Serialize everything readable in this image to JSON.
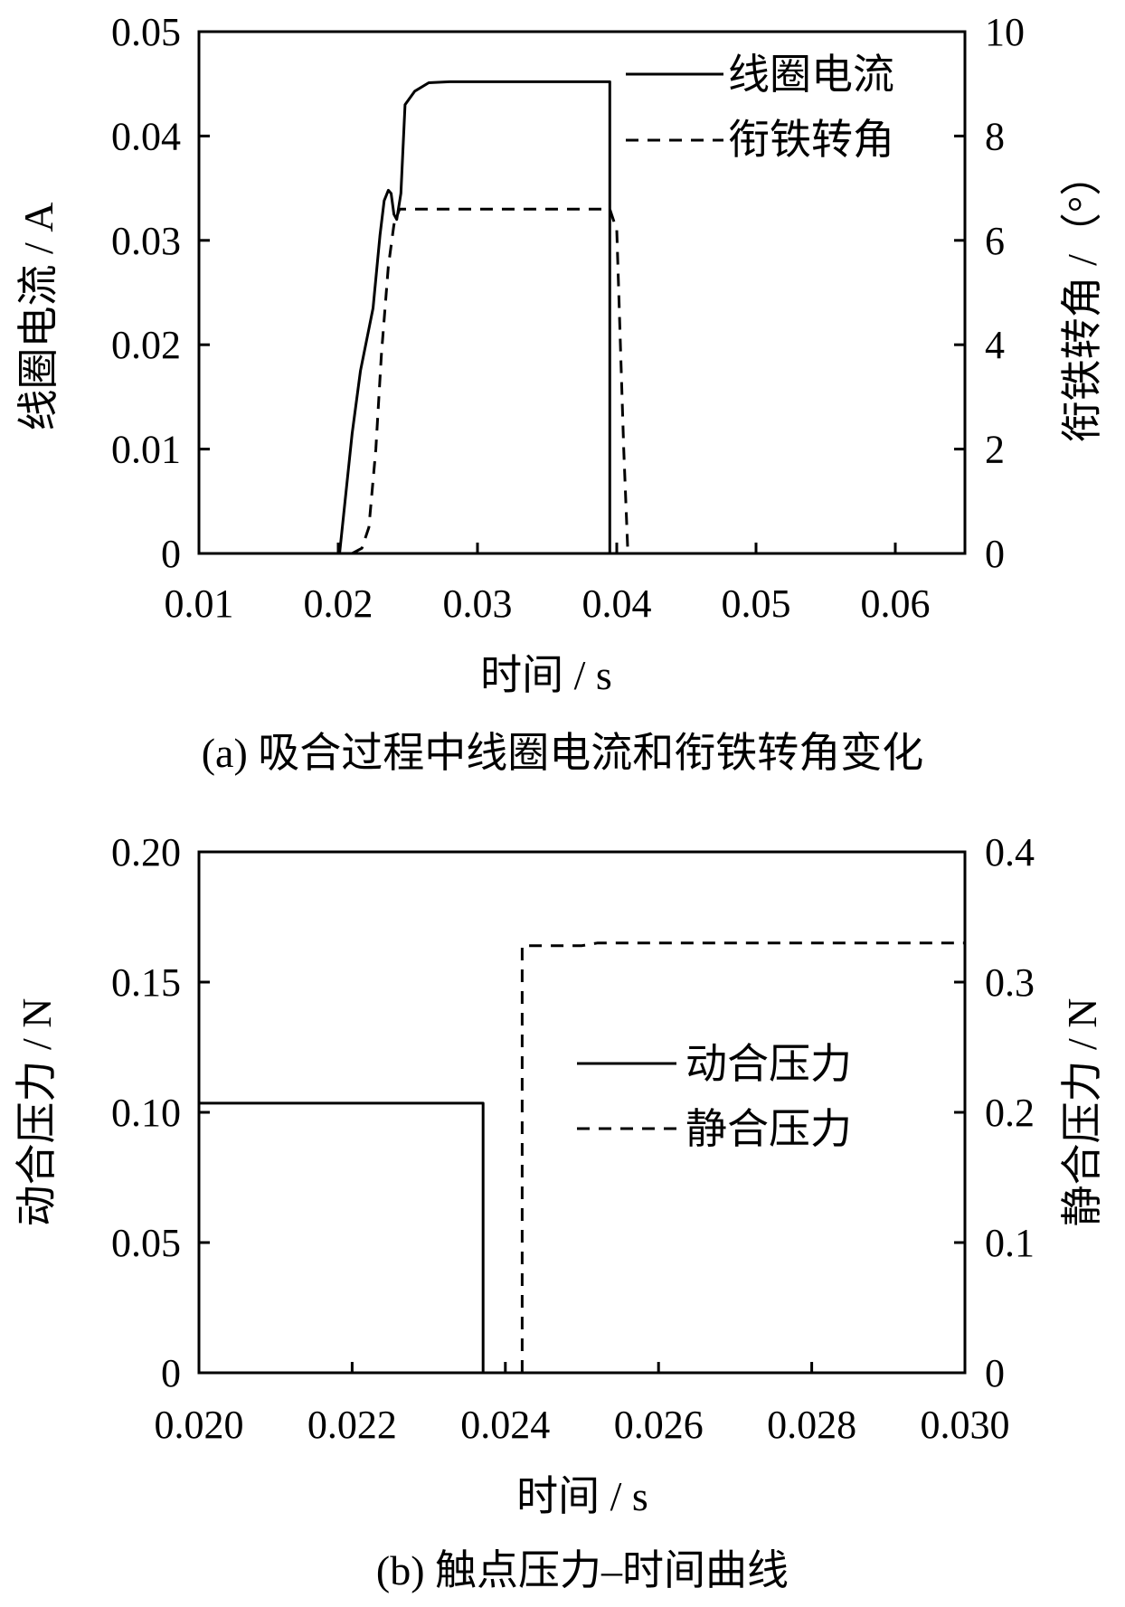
{
  "chart_data": [
    {
      "id": "a",
      "type": "line",
      "caption": "(a)  吸合过程中线圈电流和衔铁转角变化",
      "xlabel": "时间 / s",
      "ylabel": "线圈电流 / A",
      "y2label": "衔铁转角 /（°）",
      "xlim": [
        0.01,
        0.065
      ],
      "ylim": [
        0,
        0.05
      ],
      "y2lim": [
        0,
        10
      ],
      "xticks": [
        "0.01",
        "0.02",
        "0.03",
        "0.04",
        "0.05",
        "0.06"
      ],
      "yticks": [
        "0",
        "0.01",
        "0.02",
        "0.03",
        "0.04",
        "0.05"
      ],
      "y2ticks": [
        "0",
        "2",
        "4",
        "6",
        "8",
        "10"
      ],
      "legend": {
        "position": "top-right",
        "entries": [
          "线圈电流",
          "衔铁转角"
        ]
      },
      "series": [
        {
          "name": "线圈电流",
          "axis": "left",
          "style": "solid",
          "x": [
            0.01,
            0.0199,
            0.0201,
            0.021,
            0.0216,
            0.0225,
            0.023,
            0.0233,
            0.0236,
            0.0238,
            0.024,
            0.0242,
            0.0245,
            0.0248,
            0.0255,
            0.0265,
            0.028,
            0.0395,
            0.0395,
            0.0398
          ],
          "y": [
            0,
            0,
            0,
            0.0115,
            0.0175,
            0.0235,
            0.0305,
            0.0338,
            0.0348,
            0.0345,
            0.0325,
            0.032,
            0.0345,
            0.043,
            0.0443,
            0.0451,
            0.0452,
            0.0452,
            0.0,
            0.0
          ]
        },
        {
          "name": "衔铁转角",
          "axis": "right",
          "style": "dashed",
          "x": [
            0.021,
            0.0217,
            0.0222,
            0.0227,
            0.0231,
            0.0236,
            0.024,
            0.0244,
            0.0248,
            0.0253,
            0.0395,
            0.04,
            0.0405,
            0.0408
          ],
          "y": [
            0,
            0.1,
            0.5,
            2.0,
            3.8,
            5.5,
            6.3,
            6.6,
            6.6,
            6.6,
            6.6,
            6.2,
            2.0,
            0
          ]
        }
      ]
    },
    {
      "id": "b",
      "type": "line",
      "caption": "(b)  触点压力–时间曲线",
      "xlabel": "时间 / s",
      "ylabel": "动合压力 / N",
      "y2label": "静合压力 / N",
      "xlim": [
        0.02,
        0.03
      ],
      "ylim": [
        0,
        0.2
      ],
      "y2lim": [
        0,
        0.4
      ],
      "xticks": [
        "0.020",
        "0.022",
        "0.024",
        "0.026",
        "0.028",
        "0.030"
      ],
      "yticks": [
        "0",
        "0.05",
        "0.10",
        "0.15",
        "0.20"
      ],
      "y2ticks": [
        "0",
        "0.1",
        "0.2",
        "0.3",
        "0.4"
      ],
      "legend": {
        "position": "center-right",
        "entries": [
          "动合压力",
          "静合压力"
        ]
      },
      "series": [
        {
          "name": "动合压力",
          "axis": "left",
          "style": "solid",
          "x": [
            0.02,
            0.02371,
            0.02371
          ],
          "y": [
            0.1035,
            0.1035,
            0
          ]
        },
        {
          "name": "静合压力",
          "axis": "right",
          "style": "dashed",
          "x": [
            0.02422,
            0.02422,
            0.025,
            0.0252,
            0.0255,
            0.03
          ],
          "y": [
            0,
            0.328,
            0.328,
            0.33,
            0.33,
            0.33
          ]
        }
      ]
    }
  ]
}
